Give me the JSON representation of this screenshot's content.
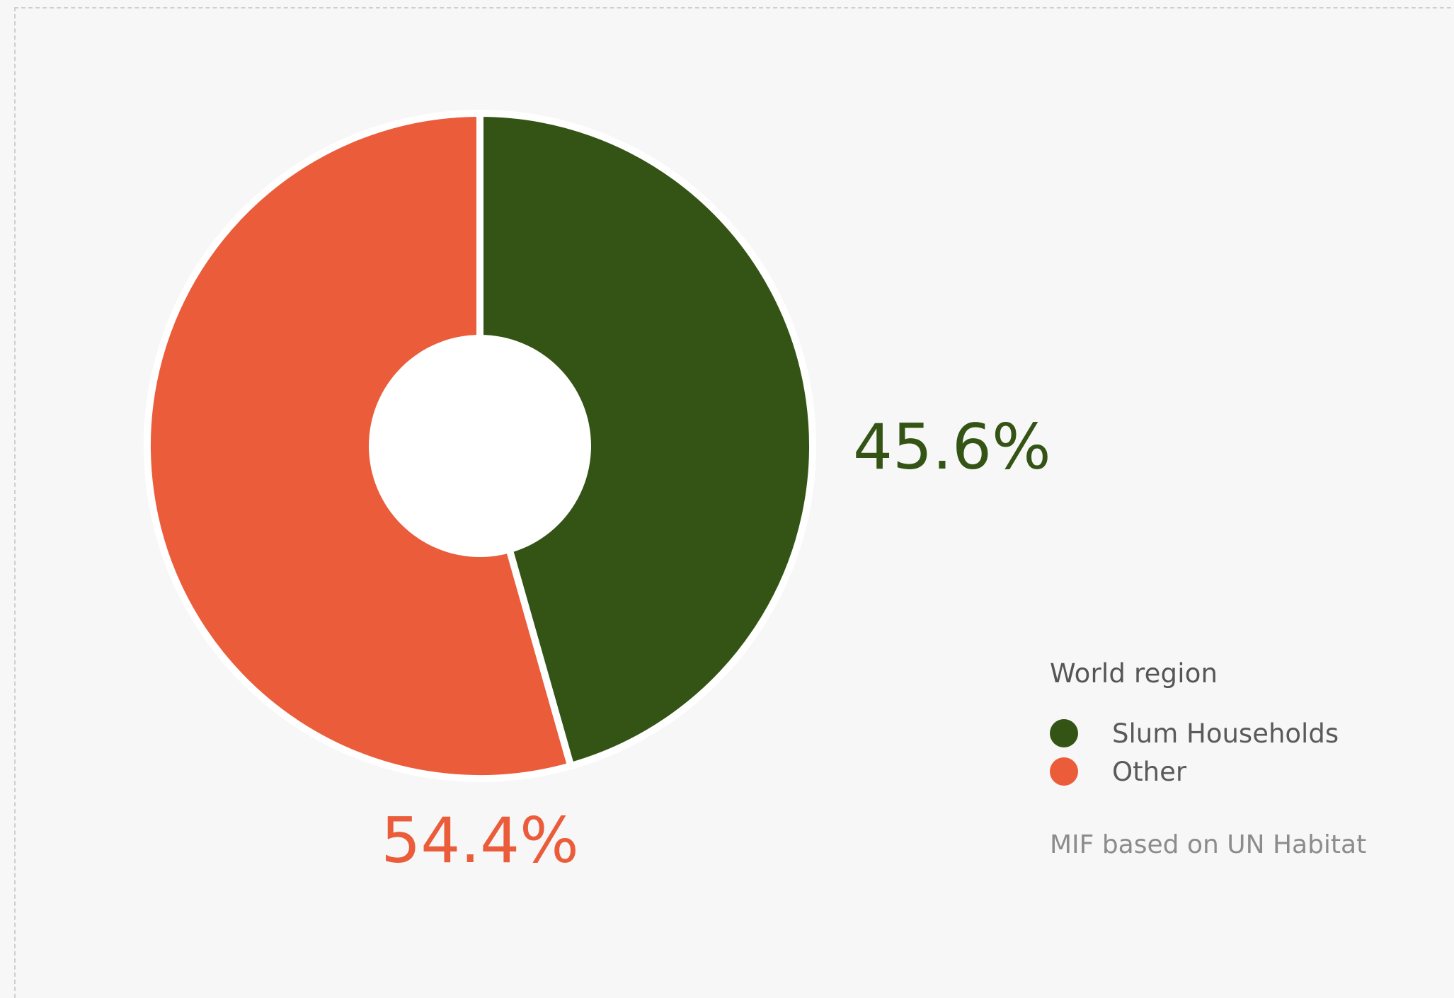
{
  "chart_data": {
    "type": "pie",
    "donut": true,
    "categories": [
      "Slum Households",
      "Other"
    ],
    "values": [
      45.6,
      54.4
    ],
    "labels": [
      "45.6%",
      "54.4%"
    ],
    "colors": [
      "#345416",
      "#eb5c3b"
    ],
    "legend_title": "World region",
    "legend_position": "bottom-right",
    "source": "MIF based on UN Habitat"
  }
}
